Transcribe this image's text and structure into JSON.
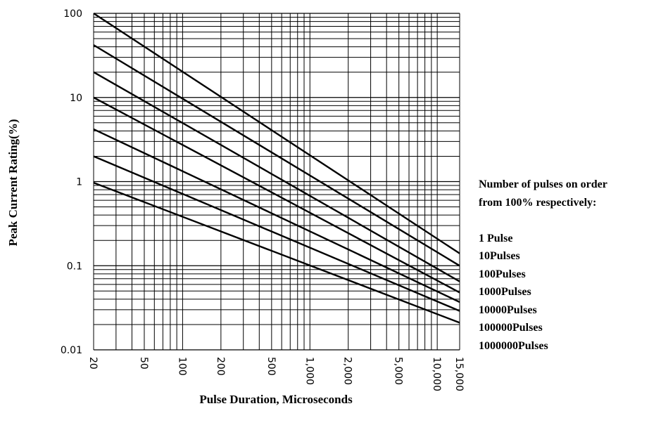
{
  "chart_data": {
    "type": "line",
    "title": "",
    "xlabel": "Pulse Duration, Microseconds",
    "ylabel": "Peak Current Rating(%)",
    "x_scale": "log",
    "y_scale": "log",
    "xlim": [
      20,
      15000
    ],
    "ylim": [
      0.01,
      100
    ],
    "grid": true,
    "x_tick_values": [
      20,
      50,
      100,
      200,
      500,
      1000,
      2000,
      5000,
      10000,
      15000
    ],
    "x_tick_labels": [
      "20",
      "50",
      "100",
      "200",
      "500",
      "1,000",
      "2,000",
      "5,000",
      "10,000",
      "15,000"
    ],
    "y_tick_values": [
      0.01,
      0.1,
      1,
      10,
      100
    ],
    "y_tick_labels": [
      "0.01",
      "0.1",
      "1",
      "10",
      "100"
    ],
    "series": [
      {
        "x": [
          20,
          15000
        ],
        "y": [
          100,
          0.14
        ]
      },
      {
        "x": [
          20,
          15000
        ],
        "y": [
          42,
          0.1
        ]
      },
      {
        "x": [
          20,
          15000
        ],
        "y": [
          20,
          0.065
        ]
      },
      {
        "x": [
          20,
          15000
        ],
        "y": [
          10,
          0.048
        ]
      },
      {
        "x": [
          20,
          15000
        ],
        "y": [
          4.2,
          0.037
        ]
      },
      {
        "x": [
          20,
          15000
        ],
        "y": [
          2,
          0.029
        ]
      },
      {
        "x": [
          20,
          15000
        ],
        "y": [
          0.97,
          0.021
        ]
      }
    ],
    "legend": {
      "heading": [
        "Number of pulses on order",
        "from 100% respectively:"
      ],
      "entries": [
        "1 Pulse",
        "10Pulses",
        "100Pulses",
        "1000Pulses",
        "10000Pulses",
        "100000Pulses",
        "1000000Pulses"
      ]
    }
  }
}
